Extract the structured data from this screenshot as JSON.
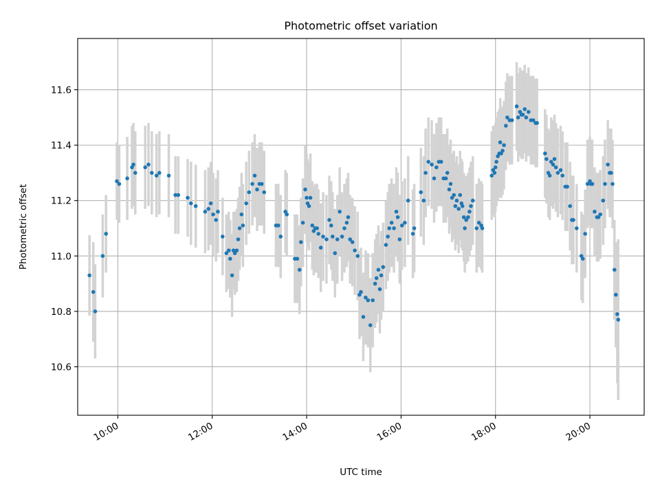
{
  "chart_data": {
    "type": "scatter",
    "title": "Photometric offset variation",
    "xlabel": "UTC time",
    "ylabel": "Photometric offset",
    "xlim": [
      9.15,
      21.15
    ],
    "ylim": [
      10.425,
      11.785
    ],
    "x_ticks": [
      {
        "value": 10,
        "label": "10:00"
      },
      {
        "value": 12,
        "label": "12:00"
      },
      {
        "value": 14,
        "label": "14:00"
      },
      {
        "value": 16,
        "label": "16:00"
      },
      {
        "value": 18,
        "label": "18:00"
      },
      {
        "value": 20,
        "label": "20:00"
      }
    ],
    "y_ticks": [
      {
        "value": 10.6,
        "label": "10.6"
      },
      {
        "value": 10.8,
        "label": "10.8"
      },
      {
        "value": 11.0,
        "label": "11.0"
      },
      {
        "value": 11.2,
        "label": "11.2"
      },
      {
        "value": 11.4,
        "label": "11.4"
      },
      {
        "value": 11.6,
        "label": "11.6"
      }
    ],
    "grid": true,
    "point_color": "#1f77b4",
    "error_color": "#d3d3d3",
    "series": [
      {
        "points": [
          [
            9.4,
            10.93,
            0.145
          ],
          [
            9.48,
            10.87,
            0.18
          ],
          [
            9.52,
            10.8,
            0.17
          ],
          [
            9.68,
            11.0,
            0.15
          ],
          [
            9.75,
            11.08,
            0.14
          ],
          [
            9.98,
            11.27,
            0.14
          ],
          [
            10.03,
            11.26,
            0.14
          ],
          [
            10.2,
            11.28,
            0.15
          ],
          [
            10.3,
            11.32,
            0.15
          ],
          [
            10.33,
            11.33,
            0.15
          ],
          [
            10.37,
            11.3,
            0.15
          ],
          [
            10.58,
            11.32,
            0.15
          ],
          [
            10.65,
            11.33,
            0.15
          ],
          [
            10.72,
            11.3,
            0.15
          ],
          [
            10.82,
            11.29,
            0.15
          ],
          [
            10.88,
            11.3,
            0.15
          ],
          [
            11.08,
            11.29,
            0.15
          ],
          [
            11.22,
            11.22,
            0.14
          ],
          [
            11.28,
            11.22,
            0.14
          ],
          [
            11.48,
            11.21,
            0.14
          ],
          [
            11.55,
            11.19,
            0.15
          ],
          [
            11.65,
            11.18,
            0.15
          ],
          [
            11.85,
            11.16,
            0.15
          ],
          [
            11.92,
            11.17,
            0.15
          ],
          [
            11.97,
            11.19,
            0.15
          ],
          [
            12.02,
            11.15,
            0.15
          ],
          [
            12.08,
            11.13,
            0.15
          ],
          [
            12.12,
            11.16,
            0.15
          ],
          [
            12.22,
            11.07,
            0.14
          ],
          [
            12.3,
            11.01,
            0.14
          ],
          [
            12.35,
            11.02,
            0.14
          ],
          [
            12.38,
            10.99,
            0.14
          ],
          [
            12.42,
            10.93,
            0.15
          ],
          [
            12.45,
            11.02,
            0.14
          ],
          [
            12.48,
            11.01,
            0.15
          ],
          [
            12.52,
            11.02,
            0.15
          ],
          [
            12.55,
            11.06,
            0.15
          ],
          [
            12.58,
            11.1,
            0.15
          ],
          [
            12.62,
            11.15,
            0.15
          ],
          [
            12.65,
            11.11,
            0.15
          ],
          [
            12.72,
            11.19,
            0.15
          ],
          [
            12.78,
            11.23,
            0.15
          ],
          [
            12.85,
            11.26,
            0.15
          ],
          [
            12.9,
            11.29,
            0.15
          ],
          [
            12.95,
            11.24,
            0.15
          ],
          [
            13.0,
            11.26,
            0.15
          ],
          [
            13.05,
            11.26,
            0.15
          ],
          [
            13.1,
            11.23,
            0.15
          ],
          [
            13.35,
            11.11,
            0.15
          ],
          [
            13.4,
            11.11,
            0.15
          ],
          [
            13.45,
            11.07,
            0.15
          ],
          [
            13.55,
            11.16,
            0.15
          ],
          [
            13.58,
            11.15,
            0.15
          ],
          [
            13.75,
            10.99,
            0.16
          ],
          [
            13.8,
            10.99,
            0.16
          ],
          [
            13.85,
            10.95,
            0.16
          ],
          [
            13.88,
            11.05,
            0.16
          ],
          [
            13.92,
            11.12,
            0.16
          ],
          [
            13.97,
            11.24,
            0.16
          ],
          [
            14.0,
            11.21,
            0.16
          ],
          [
            14.02,
            11.19,
            0.16
          ],
          [
            14.05,
            11.18,
            0.16
          ],
          [
            14.08,
            11.21,
            0.16
          ],
          [
            14.12,
            11.11,
            0.16
          ],
          [
            14.15,
            11.09,
            0.16
          ],
          [
            14.18,
            11.1,
            0.16
          ],
          [
            14.22,
            11.1,
            0.16
          ],
          [
            14.25,
            11.08,
            0.16
          ],
          [
            14.3,
            11.03,
            0.16
          ],
          [
            14.35,
            11.07,
            0.16
          ],
          [
            14.42,
            11.06,
            0.16
          ],
          [
            14.48,
            11.13,
            0.16
          ],
          [
            14.52,
            11.11,
            0.16
          ],
          [
            14.55,
            11.07,
            0.16
          ],
          [
            14.6,
            11.01,
            0.16
          ],
          [
            14.65,
            11.06,
            0.16
          ],
          [
            14.7,
            11.16,
            0.16
          ],
          [
            14.75,
            11.07,
            0.16
          ],
          [
            14.8,
            11.1,
            0.16
          ],
          [
            14.85,
            11.12,
            0.16
          ],
          [
            14.88,
            11.14,
            0.16
          ],
          [
            14.92,
            11.06,
            0.16
          ],
          [
            14.97,
            11.05,
            0.16
          ],
          [
            15.02,
            11.02,
            0.16
          ],
          [
            15.08,
            11.0,
            0.16
          ],
          [
            15.12,
            10.86,
            0.16
          ],
          [
            15.15,
            10.87,
            0.16
          ],
          [
            15.2,
            10.78,
            0.16
          ],
          [
            15.25,
            10.85,
            0.17
          ],
          [
            15.3,
            10.84,
            0.17
          ],
          [
            15.35,
            10.75,
            0.17
          ],
          [
            15.4,
            10.84,
            0.17
          ],
          [
            15.45,
            10.9,
            0.16
          ],
          [
            15.48,
            10.92,
            0.16
          ],
          [
            15.52,
            10.95,
            0.16
          ],
          [
            15.55,
            10.88,
            0.16
          ],
          [
            15.58,
            10.93,
            0.16
          ],
          [
            15.62,
            10.96,
            0.16
          ],
          [
            15.68,
            11.04,
            0.16
          ],
          [
            15.72,
            11.07,
            0.16
          ],
          [
            15.75,
            11.1,
            0.16
          ],
          [
            15.8,
            11.12,
            0.16
          ],
          [
            15.85,
            11.1,
            0.16
          ],
          [
            15.9,
            11.16,
            0.16
          ],
          [
            15.93,
            11.14,
            0.16
          ],
          [
            15.97,
            11.06,
            0.16
          ],
          [
            16.02,
            11.11,
            0.16
          ],
          [
            16.08,
            11.12,
            0.16
          ],
          [
            16.15,
            11.2,
            0.16
          ],
          [
            16.25,
            11.08,
            0.16
          ],
          [
            16.28,
            11.1,
            0.16
          ],
          [
            16.42,
            11.23,
            0.16
          ],
          [
            16.48,
            11.2,
            0.16
          ],
          [
            16.52,
            11.3,
            0.16
          ],
          [
            16.58,
            11.34,
            0.16
          ],
          [
            16.65,
            11.33,
            0.16
          ],
          [
            16.7,
            11.28,
            0.16
          ],
          [
            16.75,
            11.32,
            0.16
          ],
          [
            16.8,
            11.34,
            0.16
          ],
          [
            16.85,
            11.34,
            0.16
          ],
          [
            16.9,
            11.28,
            0.16
          ],
          [
            16.95,
            11.28,
            0.16
          ],
          [
            16.98,
            11.3,
            0.16
          ],
          [
            17.02,
            11.24,
            0.16
          ],
          [
            17.05,
            11.26,
            0.16
          ],
          [
            17.08,
            11.21,
            0.16
          ],
          [
            17.12,
            11.22,
            0.16
          ],
          [
            17.15,
            11.18,
            0.16
          ],
          [
            17.18,
            11.2,
            0.16
          ],
          [
            17.22,
            11.17,
            0.16
          ],
          [
            17.25,
            11.22,
            0.16
          ],
          [
            17.28,
            11.19,
            0.16
          ],
          [
            17.3,
            11.18,
            0.16
          ],
          [
            17.33,
            11.14,
            0.16
          ],
          [
            17.35,
            11.1,
            0.16
          ],
          [
            17.38,
            11.13,
            0.16
          ],
          [
            17.42,
            11.14,
            0.16
          ],
          [
            17.45,
            11.16,
            0.16
          ],
          [
            17.48,
            11.18,
            0.16
          ],
          [
            17.52,
            11.2,
            0.16
          ],
          [
            17.6,
            11.1,
            0.16
          ],
          [
            17.65,
            11.12,
            0.16
          ],
          [
            17.7,
            11.11,
            0.16
          ],
          [
            17.72,
            11.1,
            0.16
          ],
          [
            17.92,
            11.29,
            0.16
          ],
          [
            17.95,
            11.31,
            0.16
          ],
          [
            17.98,
            11.3,
            0.16
          ],
          [
            18.0,
            11.32,
            0.16
          ],
          [
            18.02,
            11.34,
            0.16
          ],
          [
            18.05,
            11.36,
            0.16
          ],
          [
            18.08,
            11.37,
            0.16
          ],
          [
            18.1,
            11.41,
            0.16
          ],
          [
            18.12,
            11.37,
            0.16
          ],
          [
            18.15,
            11.38,
            0.16
          ],
          [
            18.18,
            11.4,
            0.16
          ],
          [
            18.22,
            11.47,
            0.16
          ],
          [
            18.25,
            11.5,
            0.16
          ],
          [
            18.3,
            11.49,
            0.16
          ],
          [
            18.35,
            11.49,
            0.16
          ],
          [
            18.45,
            11.54,
            0.16
          ],
          [
            18.48,
            11.5,
            0.16
          ],
          [
            18.52,
            11.52,
            0.16
          ],
          [
            18.55,
            11.51,
            0.16
          ],
          [
            18.58,
            11.51,
            0.16
          ],
          [
            18.62,
            11.53,
            0.16
          ],
          [
            18.65,
            11.5,
            0.16
          ],
          [
            18.7,
            11.52,
            0.16
          ],
          [
            18.75,
            11.49,
            0.16
          ],
          [
            18.8,
            11.49,
            0.16
          ],
          [
            18.85,
            11.48,
            0.16
          ],
          [
            18.88,
            11.48,
            0.16
          ],
          [
            19.05,
            11.37,
            0.16
          ],
          [
            19.08,
            11.35,
            0.16
          ],
          [
            19.12,
            11.3,
            0.16
          ],
          [
            19.15,
            11.29,
            0.16
          ],
          [
            19.18,
            11.34,
            0.16
          ],
          [
            19.22,
            11.33,
            0.16
          ],
          [
            19.25,
            11.35,
            0.16
          ],
          [
            19.28,
            11.32,
            0.16
          ],
          [
            19.32,
            11.3,
            0.16
          ],
          [
            19.38,
            11.31,
            0.16
          ],
          [
            19.42,
            11.29,
            0.16
          ],
          [
            19.48,
            11.25,
            0.16
          ],
          [
            19.52,
            11.25,
            0.16
          ],
          [
            19.58,
            11.18,
            0.16
          ],
          [
            19.62,
            11.13,
            0.16
          ],
          [
            19.65,
            11.13,
            0.16
          ],
          [
            19.72,
            11.1,
            0.16
          ],
          [
            19.82,
            11.0,
            0.16
          ],
          [
            19.85,
            10.99,
            0.16
          ],
          [
            19.9,
            11.08,
            0.16
          ],
          [
            19.95,
            11.26,
            0.16
          ],
          [
            20.0,
            11.27,
            0.16
          ],
          [
            20.02,
            11.26,
            0.16
          ],
          [
            20.05,
            11.26,
            0.16
          ],
          [
            20.1,
            11.16,
            0.16
          ],
          [
            20.15,
            11.14,
            0.16
          ],
          [
            20.18,
            11.14,
            0.16
          ],
          [
            20.22,
            11.15,
            0.16
          ],
          [
            20.28,
            11.2,
            0.16
          ],
          [
            20.32,
            11.26,
            0.16
          ],
          [
            20.38,
            11.33,
            0.16
          ],
          [
            20.42,
            11.3,
            0.16
          ],
          [
            20.45,
            11.3,
            0.16
          ],
          [
            20.48,
            11.26,
            0.16
          ],
          [
            20.52,
            10.95,
            0.18
          ],
          [
            20.55,
            10.86,
            0.19
          ],
          [
            20.58,
            10.79,
            0.25
          ],
          [
            20.6,
            10.77,
            0.29
          ]
        ]
      }
    ]
  }
}
